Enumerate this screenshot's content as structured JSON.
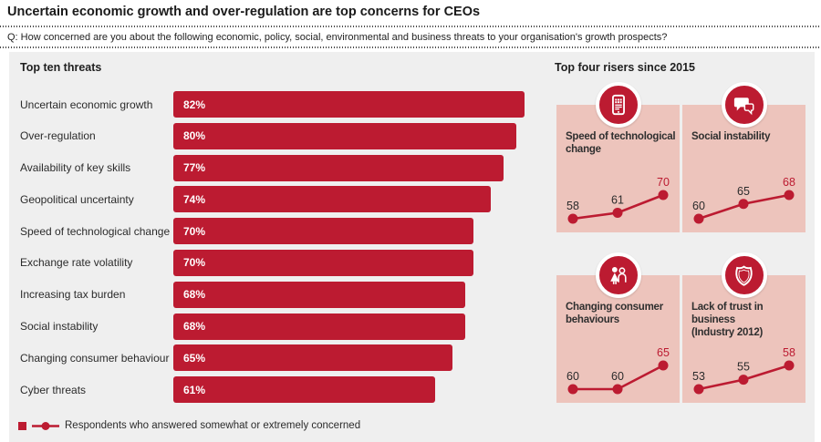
{
  "header": {
    "title": "Uncertain economic growth and over-regulation are top concerns for CEOs",
    "question": "Q: How concerned are you about the following economic, policy, social, environmental and business threats to your organisation's growth prospects?"
  },
  "colors": {
    "red": "#bc1b31",
    "pink": "#edc4bc",
    "panel_gray": "#efefef",
    "text_dark": "#2b2b2b",
    "white": "#ffffff"
  },
  "threats": {
    "heading": "Top ten threats"
  },
  "risers": {
    "heading": "Top four risers since 2015",
    "cards": [
      {
        "title": "Speed of technological\nchange",
        "icon": "phone-icon"
      },
      {
        "title": "Social instability",
        "icon": "speech-bubbles-icon"
      },
      {
        "title": "Changing consumer\nbehaviours",
        "icon": "people-icon"
      },
      {
        "title": "Lack of trust in\nbusiness\n(Industry 2012)",
        "icon": "shield-icon"
      }
    ]
  },
  "legend": {
    "label": "Respondents who answered somewhat or extremely concerned"
  },
  "chart_data": [
    {
      "type": "bar",
      "title": "Top ten threats",
      "orientation": "horizontal",
      "categories": [
        "Uncertain economic growth",
        "Over-regulation",
        "Availability of key skills",
        "Geopolitical uncertainty",
        "Speed of technological change",
        "Exchange rate volatility",
        "Increasing tax burden",
        "Social instability",
        "Changing consumer behaviour",
        "Cyber threats"
      ],
      "values": [
        82,
        80,
        77,
        74,
        70,
        70,
        68,
        68,
        65,
        61
      ],
      "unit": "%",
      "xlim": [
        0,
        100
      ],
      "data_labels": "inside-left",
      "axis_visible": false
    },
    {
      "type": "line",
      "title": "Speed of technological change",
      "values": [
        58,
        61,
        70
      ],
      "last_point_highlighted": true
    },
    {
      "type": "line",
      "title": "Social instability",
      "values": [
        60,
        65,
        68
      ],
      "last_point_highlighted": true
    },
    {
      "type": "line",
      "title": "Changing consumer behaviours",
      "values": [
        60,
        60,
        65
      ],
      "last_point_highlighted": true
    },
    {
      "type": "line",
      "title": "Lack of trust in business (Industry 2012)",
      "values": [
        53,
        55,
        58
      ],
      "last_point_highlighted": true
    }
  ]
}
